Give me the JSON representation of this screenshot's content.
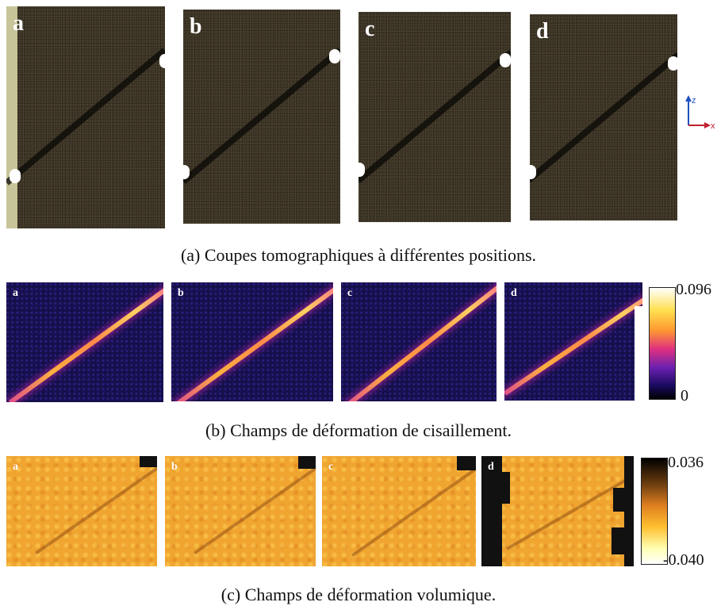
{
  "row_a": {
    "panels": [
      {
        "label": "a"
      },
      {
        "label": "b"
      },
      {
        "label": "c"
      },
      {
        "label": "d"
      }
    ],
    "caption": "(a) Coupes tomographiques à différentes positions.",
    "axis_indicator": {
      "z": "z",
      "x": "x"
    }
  },
  "row_b": {
    "panels": [
      {
        "label": "a"
      },
      {
        "label": "b"
      },
      {
        "label": "c"
      },
      {
        "label": "d"
      }
    ],
    "caption": "(b) Champs de déformation de cisaillement.",
    "colorbar": {
      "max": "0.096",
      "min": "0",
      "colors": [
        "#ffffff",
        "#ffe050",
        "#ff9a30",
        "#e03080",
        "#6a20b0",
        "#1a0a60",
        "#000000"
      ]
    }
  },
  "row_c": {
    "panels": [
      {
        "label": "a"
      },
      {
        "label": "b"
      },
      {
        "label": "c"
      },
      {
        "label": "d"
      }
    ],
    "caption": "(c) Champs de déformation volumique.",
    "colorbar": {
      "max": "0.036",
      "min": "-0.040",
      "colors": [
        "#000000",
        "#704010",
        "#e08020",
        "#ffc030",
        "#ffffb0",
        "#ffffff"
      ]
    }
  }
}
